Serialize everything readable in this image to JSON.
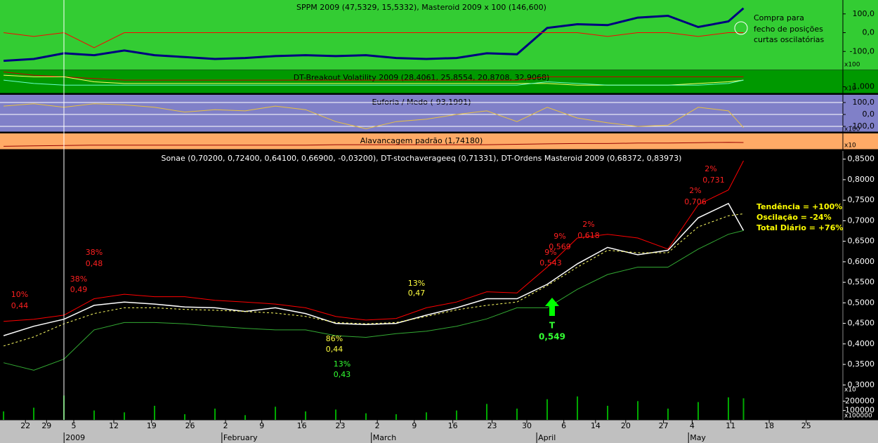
{
  "chart_data": [
    {
      "type": "line",
      "title": "SPPM 2009 (47,5329, 15,5332), Masteroid 2009 x 100 (146,600)",
      "ylim": [
        -200,
        174
      ],
      "yticks": [
        {
          "value": 100,
          "label": "100,0"
        },
        {
          "value": 0,
          "label": "0,0"
        },
        {
          "value": -100,
          "label": "-100,0"
        }
      ],
      "scale_label": "x100",
      "annotation": [
        "Compra para",
        "fecho de posições",
        "curtas oscilatórias"
      ],
      "x": [
        0,
        4,
        8,
        12,
        16,
        20,
        24,
        28,
        32,
        36,
        40,
        44,
        48,
        52,
        56,
        60,
        64,
        68,
        72,
        76,
        80,
        84,
        88,
        92,
        96,
        98
      ],
      "series": [
        {
          "color": "#000080",
          "values": [
            -150,
            -140,
            -110,
            -120,
            -95,
            -120,
            -130,
            -140,
            -135,
            -125,
            -120,
            -125,
            -120,
            -135,
            -140,
            -135,
            -110,
            -115,
            25,
            45,
            40,
            80,
            90,
            30,
            60,
            130
          ]
        },
        {
          "color": "#ff0000",
          "values": [
            0,
            -20,
            0,
            -80,
            0,
            0,
            0,
            0,
            0,
            0,
            0,
            0,
            0,
            0,
            0,
            0,
            0,
            0,
            0,
            0,
            -20,
            0,
            0,
            -20,
            0,
            0
          ]
        }
      ]
    },
    {
      "type": "line",
      "title": "DT-Breakout Volatility 2009 (28,4061, 25,8554, 20,8708, 32,9068)",
      "ylim": [
        0.8,
        1.5
      ],
      "yticks": [
        {
          "value": 1,
          "label": "1,000"
        }
      ],
      "scale_label": "x10",
      "x": [
        0,
        4,
        8,
        12,
        16,
        20,
        24,
        28,
        32,
        36,
        40,
        44,
        48,
        52,
        56,
        60,
        64,
        68,
        72,
        76,
        80,
        84,
        88,
        92,
        96,
        98
      ],
      "series": [
        {
          "color": "#cc0000",
          "values": [
            1.45,
            1.35,
            1.3,
            1.25,
            1.2,
            1.2,
            1.2,
            1.2,
            1.2,
            1.2,
            1.2,
            1.2,
            1.2,
            1.2,
            1.2,
            1.2,
            1.2,
            1.2,
            1.3,
            1.3,
            1.3,
            1.3,
            1.3,
            1.3,
            1.3,
            1.3
          ]
        },
        {
          "color": "#ffff66",
          "values": [
            1.35,
            1.3,
            1.3,
            1.15,
            1.1,
            1.1,
            1.1,
            1.1,
            1.1,
            1.1,
            1.1,
            1.1,
            1.1,
            1.1,
            1.1,
            1.1,
            1.1,
            1.1,
            1.1,
            1.05,
            1.05,
            1.05,
            1.05,
            1.1,
            1.15,
            1.2
          ]
        },
        {
          "color": "#66ffcc",
          "values": [
            1.2,
            1.1,
            1.05,
            1.05,
            1.05,
            1.05,
            1.05,
            1.05,
            1.05,
            1.05,
            1.05,
            1.05,
            1.05,
            1.05,
            1.05,
            1.05,
            1.05,
            1.05,
            1.15,
            1.1,
            1.05,
            1.05,
            1.05,
            1.05,
            1.1,
            1.2
          ]
        }
      ]
    },
    {
      "type": "line",
      "title": "Euforia / Medo (-93,1991)",
      "ylim": [
        -147,
        165
      ],
      "yticks": [
        {
          "value": 100,
          "label": "100,0"
        },
        {
          "value": 0,
          "label": "0,0"
        },
        {
          "value": -100,
          "label": "-100,0"
        }
      ],
      "grid": true,
      "scale_label": "x100",
      "x": [
        0,
        4,
        8,
        12,
        16,
        20,
        24,
        28,
        32,
        36,
        40,
        44,
        48,
        52,
        56,
        60,
        64,
        68,
        72,
        76,
        80,
        84,
        88,
        92,
        96,
        98
      ],
      "series": [
        {
          "color": "#e8c040",
          "values": [
            70,
            90,
            60,
            90,
            80,
            60,
            20,
            40,
            30,
            70,
            40,
            -60,
            -120,
            -60,
            -40,
            0,
            30,
            -60,
            60,
            -30,
            -70,
            -100,
            -90,
            60,
            30,
            -110
          ]
        }
      ]
    },
    {
      "type": "line",
      "title": "Alavancagem padrão (1,74180)",
      "ylim": [
        0,
        4
      ],
      "scale_label": "x10",
      "x": [
        0,
        4,
        8,
        12,
        16,
        20,
        24,
        28,
        32,
        36,
        40,
        44,
        48,
        52,
        56,
        60,
        64,
        68,
        72,
        76,
        80,
        84,
        88,
        92,
        96,
        98
      ],
      "series": [
        {
          "color": "#990000",
          "values": [
            0.8,
            0.9,
            1.0,
            1.1,
            1.1,
            1.1,
            1.1,
            1.1,
            1.1,
            1.1,
            1.1,
            1.2,
            1.2,
            1.2,
            1.2,
            1.2,
            1.2,
            1.3,
            1.4,
            1.5,
            1.5,
            1.6,
            1.6,
            1.7,
            1.8,
            1.74
          ]
        }
      ]
    },
    {
      "type": "line",
      "title": "Sonae (0,70200, 0,72400, 0,64100, 0,66900, -0,03200), DT-stochaverageeq (0,71331), DT-Ordens Masteroid 2009 (0,68372, 0,83973)",
      "ylim": [
        0.28,
        0.87
      ],
      "yticks": [
        {
          "value": 0.85,
          "label": "0,8500"
        },
        {
          "value": 0.8,
          "label": "0,8000"
        },
        {
          "value": 0.75,
          "label": "0,7500"
        },
        {
          "value": 0.7,
          "label": "0,7000"
        },
        {
          "value": 0.65,
          "label": "0,6500"
        },
        {
          "value": 0.6,
          "label": "0,6000"
        },
        {
          "value": 0.55,
          "label": "0,5500"
        },
        {
          "value": 0.5,
          "label": "0,5000"
        },
        {
          "value": 0.45,
          "label": "0,4500"
        },
        {
          "value": 0.4,
          "label": "0,4000"
        },
        {
          "value": 0.35,
          "label": "0,3500"
        },
        {
          "value": 0.3,
          "label": "0,3000"
        }
      ],
      "scale_label": "x10",
      "xlim": [
        -0.47,
        111.16
      ],
      "xticks": [
        {
          "value": 2.9,
          "label": "22"
        },
        {
          "value": 5.7,
          "label": "29"
        },
        {
          "value": 9.3,
          "label": "5"
        },
        {
          "value": 14.6,
          "label": "12"
        },
        {
          "value": 19.6,
          "label": "19"
        },
        {
          "value": 24.7,
          "label": "26"
        },
        {
          "value": 29.4,
          "label": "2"
        },
        {
          "value": 34.2,
          "label": "9"
        },
        {
          "value": 39.5,
          "label": "16"
        },
        {
          "value": 44.6,
          "label": "23"
        },
        {
          "value": 49.5,
          "label": "2"
        },
        {
          "value": 54.4,
          "label": "9"
        },
        {
          "value": 59.5,
          "label": "16"
        },
        {
          "value": 64.7,
          "label": "23"
        },
        {
          "value": 69.3,
          "label": "30"
        },
        {
          "value": 74.2,
          "label": "6"
        },
        {
          "value": 78.4,
          "label": "14"
        },
        {
          "value": 82.4,
          "label": "20"
        },
        {
          "value": 87.4,
          "label": "27"
        },
        {
          "value": 91.2,
          "label": "4"
        },
        {
          "value": 96.3,
          "label": "11"
        },
        {
          "value": 101.4,
          "label": "18"
        },
        {
          "value": 106.3,
          "label": "25"
        }
      ],
      "months": [
        {
          "value": 8.2,
          "label": "2009"
        },
        {
          "value": 29.1,
          "label": "February"
        },
        {
          "value": 48.9,
          "label": "March"
        },
        {
          "value": 70.8,
          "label": "April"
        },
        {
          "value": 90.9,
          "label": "May"
        }
      ],
      "annotations": [
        "10%",
        "0,44",
        "38%",
        "0,48",
        "38%",
        "0,49",
        "86%",
        "0,44",
        "13%",
        "0,43",
        "13%",
        "0,47",
        "9%",
        "0,569",
        "9%",
        "0,543",
        "2%",
        "0,618",
        "2%",
        "0,706",
        "2%",
        "0,731",
        "T",
        "0,549"
      ],
      "info": [
        "Tendência = +100%",
        "Oscilação = -24%",
        "Total Diário = +76%"
      ],
      "x": [
        0,
        4,
        8,
        12,
        16,
        20,
        24,
        28,
        32,
        36,
        40,
        44,
        48,
        52,
        56,
        60,
        64,
        68,
        72,
        76,
        80,
        84,
        88,
        92,
        96,
        98
      ],
      "series": [
        {
          "color": "#ffffff",
          "values": [
            0.42,
            0.443,
            0.46,
            0.494,
            0.502,
            0.497,
            0.49,
            0.488,
            0.479,
            0.488,
            0.474,
            0.45,
            0.447,
            0.45,
            0.47,
            0.488,
            0.51,
            0.51,
            0.545,
            0.595,
            0.635,
            0.617,
            0.628,
            0.707,
            0.742,
            0.676
          ]
        },
        {
          "color": "#ff0000",
          "values": [
            0.455,
            0.46,
            0.47,
            0.51,
            0.521,
            0.515,
            0.515,
            0.506,
            0.502,
            0.497,
            0.488,
            0.467,
            0.458,
            0.462,
            0.488,
            0.502,
            0.527,
            0.524,
            0.587,
            0.658,
            0.667,
            0.658,
            0.631,
            0.739,
            0.775,
            0.846
          ]
        },
        {
          "color": "#ffff66",
          "dashed": true,
          "values": [
            0.395,
            0.417,
            0.449,
            0.474,
            0.488,
            0.488,
            0.484,
            0.482,
            0.479,
            0.475,
            0.467,
            0.452,
            0.449,
            0.452,
            0.467,
            0.483,
            0.494,
            0.502,
            0.542,
            0.587,
            0.628,
            0.622,
            0.622,
            0.685,
            0.712,
            0.717
          ]
        },
        {
          "color": "#33aa33",
          "values": [
            0.354,
            0.336,
            0.363,
            0.434,
            0.452,
            0.452,
            0.449,
            0.443,
            0.438,
            0.434,
            0.434,
            0.42,
            0.416,
            0.425,
            0.431,
            0.443,
            0.461,
            0.488,
            0.488,
            0.533,
            0.569,
            0.587,
            0.587,
            0.631,
            0.667,
            0.676
          ]
        }
      ]
    },
    {
      "type": "bar",
      "ylim": [
        0,
        285000
      ],
      "yticks": [
        200000,
        100000
      ],
      "scale_label": "x100000",
      "color": "#00aa00",
      "x": [
        0,
        4,
        8,
        12,
        16,
        20,
        24,
        28,
        32,
        36,
        40,
        44,
        48,
        52,
        56,
        60,
        64,
        68,
        72,
        76,
        80,
        84,
        88,
        92,
        96,
        98
      ],
      "values": [
        90000,
        130000,
        260000,
        100000,
        80000,
        150000,
        60000,
        120000,
        50000,
        140000,
        90000,
        110000,
        70000,
        60000,
        80000,
        100000,
        170000,
        120000,
        220000,
        250000,
        150000,
        200000,
        120000,
        190000,
        240000,
        230000
      ]
    }
  ]
}
